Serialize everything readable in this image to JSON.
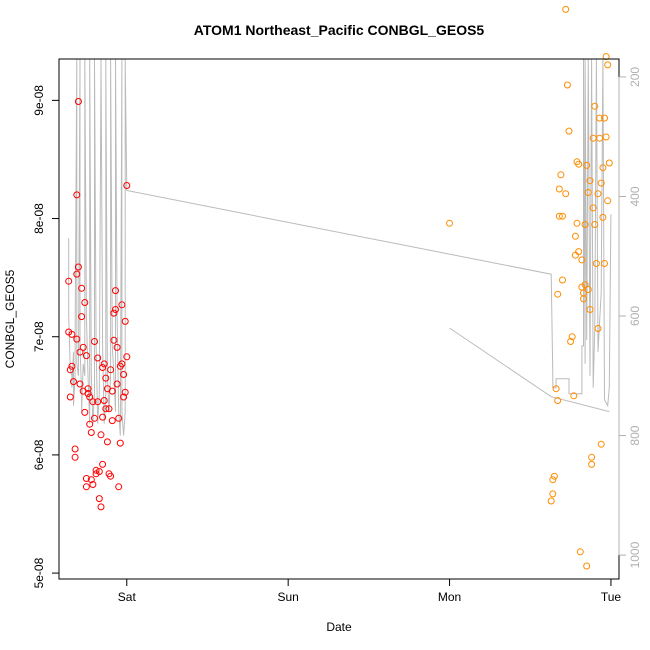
{
  "chart_data": {
    "type": "scatter",
    "title": "ATOM1 Northeast_Pacific CONBGL_GEOS5",
    "xlabel": "Date",
    "ylabel": "CONBGL_GEOS5",
    "x_unit": "days since Fri 00:00",
    "xlim": [
      0.58,
      4.05
    ],
    "ylim": [
      4.95e-08,
      9.35e-08
    ],
    "y2lim": [
      1040,
      170
    ],
    "x_ticks": [
      {
        "value": 1,
        "label": "Sat"
      },
      {
        "value": 2,
        "label": "Sun"
      },
      {
        "value": 3,
        "label": "Mon"
      },
      {
        "value": 4,
        "label": "Tue"
      }
    ],
    "y_ticks": [
      {
        "value": 5e-08,
        "label": "5e-08"
      },
      {
        "value": 6e-08,
        "label": "6e-08"
      },
      {
        "value": 7e-08,
        "label": "7e-08"
      },
      {
        "value": 8e-08,
        "label": "8e-08"
      },
      {
        "value": 9e-08,
        "label": "9e-08"
      }
    ],
    "y2_ticks": [
      {
        "value": 200,
        "label": "200"
      },
      {
        "value": 400,
        "label": "400"
      },
      {
        "value": 600,
        "label": "600"
      },
      {
        "value": 800,
        "label": "800"
      },
      {
        "value": 1000,
        "label": "1000"
      }
    ],
    "colors": {
      "series1": "#ff0000",
      "series2": "#ff8c00",
      "pressure": "#bbbbbb",
      "frame": "#000000"
    },
    "series": [
      {
        "color": "#ff0000",
        "points": [
          [
            0.64,
            7.47e-08
          ],
          [
            0.64,
            7.04e-08
          ],
          [
            0.65,
            6.72e-08
          ],
          [
            0.65,
            6.49e-08
          ],
          [
            0.66,
            6.75e-08
          ],
          [
            0.66,
            7.02e-08
          ],
          [
            0.67,
            6.62e-08
          ],
          [
            0.68,
            6.05e-08
          ],
          [
            0.68,
            5.98e-08
          ],
          [
            0.69,
            6.98e-08
          ],
          [
            0.69,
            7.53e-08
          ],
          [
            0.69,
            8.2e-08
          ],
          [
            0.7,
            8.99e-08
          ],
          [
            0.7,
            7.59e-08
          ],
          [
            0.71,
            6.87e-08
          ],
          [
            0.71,
            6.6e-08
          ],
          [
            0.72,
            7.41e-08
          ],
          [
            0.72,
            7.17e-08
          ],
          [
            0.73,
            6.91e-08
          ],
          [
            0.73,
            6.54e-08
          ],
          [
            0.74,
            6.36e-08
          ],
          [
            0.74,
            7.29e-08
          ],
          [
            0.75,
            5.8e-08
          ],
          [
            0.75,
            5.73e-08
          ],
          [
            0.75,
            6.84e-08
          ],
          [
            0.76,
            6.56e-08
          ],
          [
            0.76,
            6.52e-08
          ],
          [
            0.77,
            6.49e-08
          ],
          [
            0.77,
            6.26e-08
          ],
          [
            0.78,
            6.19e-08
          ],
          [
            0.78,
            5.79e-08
          ],
          [
            0.79,
            5.75e-08
          ],
          [
            0.79,
            6.45e-08
          ],
          [
            0.8,
            6.96e-08
          ],
          [
            0.8,
            6.31e-08
          ],
          [
            0.81,
            5.84e-08
          ],
          [
            0.81,
            5.87e-08
          ],
          [
            0.82,
            6.82e-08
          ],
          [
            0.82,
            6.45e-08
          ],
          [
            0.83,
            5.86e-08
          ],
          [
            0.83,
            5.63e-08
          ],
          [
            0.84,
            5.56e-08
          ],
          [
            0.84,
            6.17e-08
          ],
          [
            0.85,
            6.74e-08
          ],
          [
            0.85,
            6.32e-08
          ],
          [
            0.85,
            5.92e-08
          ],
          [
            0.86,
            6.46e-08
          ],
          [
            0.86,
            6.77e-08
          ],
          [
            0.87,
            6.39e-08
          ],
          [
            0.87,
            6.65e-08
          ],
          [
            0.88,
            6.56e-08
          ],
          [
            0.88,
            6.11e-08
          ],
          [
            0.89,
            6.39e-08
          ],
          [
            0.89,
            5.84e-08
          ],
          [
            0.9,
            5.82e-08
          ],
          [
            0.9,
            6.72e-08
          ],
          [
            0.91,
            6.29e-08
          ],
          [
            0.91,
            6.54e-08
          ],
          [
            0.92,
            6.97e-08
          ],
          [
            0.92,
            7.2e-08
          ],
          [
            0.93,
            7.23e-08
          ],
          [
            0.93,
            7.39e-08
          ],
          [
            0.94,
            6.91e-08
          ],
          [
            0.94,
            6.6e-08
          ],
          [
            0.95,
            6.31e-08
          ],
          [
            0.95,
            5.73e-08
          ],
          [
            0.96,
            6.1e-08
          ],
          [
            0.96,
            6.75e-08
          ],
          [
            0.97,
            6.77e-08
          ],
          [
            0.97,
            7.27e-08
          ],
          [
            0.98,
            6.68e-08
          ],
          [
            0.98,
            6.49e-08
          ],
          [
            0.99,
            7.13e-08
          ],
          [
            0.99,
            6.53e-08
          ],
          [
            1.0,
            6.83e-08
          ],
          [
            1.0,
            8.28e-08
          ]
        ]
      },
      {
        "color": "#ff8c00",
        "points": [
          [
            3.0,
            7.96e-08
          ],
          [
            3.63,
            5.61e-08
          ],
          [
            3.64,
            5.67e-08
          ],
          [
            3.64,
            5.79e-08
          ],
          [
            3.65,
            5.82e-08
          ],
          [
            3.66,
            6.56e-08
          ],
          [
            3.67,
            6.46e-08
          ],
          [
            3.67,
            7.36e-08
          ],
          [
            3.68,
            8.02e-08
          ],
          [
            3.68,
            8.25e-08
          ],
          [
            3.69,
            8.37e-08
          ],
          [
            3.7,
            8.02e-08
          ],
          [
            3.7,
            7.48e-08
          ],
          [
            3.72,
            8.21e-08
          ],
          [
            3.72,
            9.77e-08
          ],
          [
            3.73,
            9.13e-08
          ],
          [
            3.74,
            8.74e-08
          ],
          [
            3.75,
            6.96e-08
          ],
          [
            3.76,
            7e-08
          ],
          [
            3.77,
            6.5e-08
          ],
          [
            3.78,
            7.85e-08
          ],
          [
            3.78,
            7.69e-08
          ],
          [
            3.79,
            7.96e-08
          ],
          [
            3.79,
            8.48e-08
          ],
          [
            3.8,
            8.46e-08
          ],
          [
            3.8,
            7.72e-08
          ],
          [
            3.81,
            5.18e-08
          ],
          [
            3.82,
            7.42e-08
          ],
          [
            3.82,
            7.65e-08
          ],
          [
            3.83,
            7.37e-08
          ],
          [
            3.83,
            7.32e-08
          ],
          [
            3.84,
            7.44e-08
          ],
          [
            3.84,
            7.95e-08
          ],
          [
            3.85,
            8.45e-08
          ],
          [
            3.85,
            5.06e-08
          ],
          [
            3.86,
            7.4e-08
          ],
          [
            3.86,
            8.22e-08
          ],
          [
            3.87,
            8.32e-08
          ],
          [
            3.87,
            7.23e-08
          ],
          [
            3.88,
            5.98e-08
          ],
          [
            3.88,
            5.92e-08
          ],
          [
            3.89,
            8.09e-08
          ],
          [
            3.89,
            8.68e-08
          ],
          [
            3.9,
            8.95e-08
          ],
          [
            3.9,
            7.95e-08
          ],
          [
            3.91,
            7.62e-08
          ],
          [
            3.92,
            8.21e-08
          ],
          [
            3.92,
            7.07e-08
          ],
          [
            3.93,
            8.85e-08
          ],
          [
            3.93,
            8.68e-08
          ],
          [
            3.94,
            6.09e-08
          ],
          [
            3.94,
            8.3e-08
          ],
          [
            3.95,
            8.43e-08
          ],
          [
            3.95,
            8.01e-08
          ],
          [
            3.96,
            7.62e-08
          ],
          [
            3.96,
            8.85e-08
          ],
          [
            3.97,
            9.37e-08
          ],
          [
            3.97,
            8.69e-08
          ],
          [
            3.98,
            9.3e-08
          ],
          [
            3.98,
            8.15e-08
          ],
          [
            3.99,
            8.47e-08
          ]
        ]
      }
    ],
    "pressure_line": {
      "color": "#bbbbbb",
      "points": [
        [
          0.64,
          470
        ],
        [
          0.64,
          600
        ],
        [
          0.65,
          690
        ],
        [
          0.66,
          700
        ],
        [
          0.66,
          720
        ],
        [
          0.67,
          660
        ],
        [
          0.67,
          750
        ],
        [
          0.68,
          700
        ],
        [
          0.68,
          640
        ],
        [
          0.69,
          170
        ],
        [
          0.69,
          680
        ],
        [
          0.7,
          700
        ],
        [
          0.71,
          170
        ],
        [
          0.71,
          650
        ],
        [
          0.72,
          730
        ],
        [
          0.72,
          760
        ],
        [
          0.73,
          680
        ],
        [
          0.74,
          700
        ],
        [
          0.74,
          170
        ],
        [
          0.75,
          600
        ],
        [
          0.76,
          700
        ],
        [
          0.77,
          780
        ],
        [
          0.77,
          170
        ],
        [
          0.78,
          700
        ],
        [
          0.79,
          780
        ],
        [
          0.8,
          730
        ],
        [
          0.8,
          170
        ],
        [
          0.81,
          650
        ],
        [
          0.82,
          780
        ],
        [
          0.83,
          730
        ],
        [
          0.84,
          170
        ],
        [
          0.85,
          650
        ],
        [
          0.86,
          780
        ],
        [
          0.87,
          730
        ],
        [
          0.87,
          170
        ],
        [
          0.88,
          700
        ],
        [
          0.89,
          760
        ],
        [
          0.9,
          700
        ],
        [
          0.9,
          170
        ],
        [
          0.91,
          650
        ],
        [
          0.92,
          700
        ],
        [
          0.93,
          760
        ],
        [
          0.93,
          170
        ],
        [
          0.94,
          600
        ],
        [
          0.95,
          760
        ],
        [
          0.96,
          800
        ],
        [
          0.97,
          170
        ],
        [
          0.97,
          760
        ],
        [
          0.98,
          800
        ],
        [
          0.98,
          800
        ],
        [
          0.99,
          760
        ],
        [
          0.99,
          170
        ],
        [
          1.0,
          390
        ],
        [
          3.63,
          530
        ],
        [
          3.64,
          700
        ],
        [
          3.64,
          720
        ],
        [
          3.66,
          720
        ],
        [
          3.66,
          705
        ],
        [
          3.74,
          705
        ],
        [
          3.74,
          730
        ],
        [
          3.82,
          730
        ],
        [
          3.82,
          650
        ],
        [
          3.83,
          650
        ],
        [
          3.83,
          170
        ],
        [
          3.84,
          680
        ],
        [
          3.84,
          170
        ],
        [
          3.85,
          640
        ],
        [
          3.86,
          170
        ],
        [
          3.87,
          700
        ],
        [
          3.88,
          170
        ],
        [
          3.89,
          720
        ],
        [
          3.9,
          620
        ],
        [
          3.91,
          170
        ],
        [
          3.92,
          660
        ],
        [
          3.94,
          560
        ],
        [
          3.95,
          170
        ],
        [
          3.96,
          740
        ],
        [
          3.98,
          750
        ],
        [
          3.99,
          720
        ],
        [
          4.0,
          430
        ]
      ]
    },
    "pressure_line_2": {
      "color": "#bbbbbb",
      "points": [
        [
          3.0,
          620
        ],
        [
          3.63,
          735
        ],
        [
          3.99,
          760
        ]
      ]
    }
  }
}
